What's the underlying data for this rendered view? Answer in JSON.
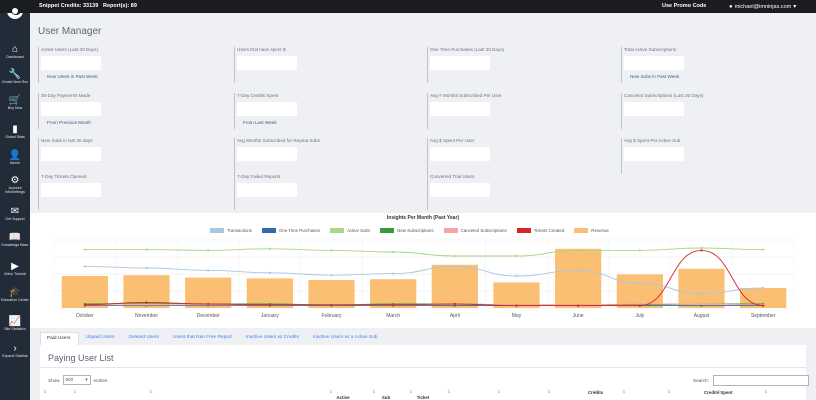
{
  "topbar": {
    "snippet_credits": "Snippet Credits: 33139",
    "reports": "Report(s): 89",
    "promo": "Use Promo Code",
    "user": "michael@imninjas.com"
  },
  "sidebar": {
    "items": [
      {
        "label": "Dashboard",
        "icon": "home-icon",
        "glyph": "⌂"
      },
      {
        "label": "Create New Run",
        "icon": "wrench-icon",
        "glyph": "🔧"
      },
      {
        "label": "Buy Now",
        "icon": "cart-icon",
        "glyph": "🛒"
      },
      {
        "label": "Global Stats",
        "icon": "bar-chart-icon",
        "glyph": "▮"
      },
      {
        "label": "Admin",
        "icon": "user-icon",
        "glyph": "👤"
      },
      {
        "label": "Account Info/Settings",
        "icon": "gear-icon",
        "glyph": "⚙"
      },
      {
        "label": "Get Support",
        "icon": "envelope-icon",
        "glyph": "✉"
      },
      {
        "label": "Knowledge Base",
        "icon": "book-icon",
        "glyph": "📖"
      },
      {
        "label": "Video Tutorial",
        "icon": "video-icon",
        "glyph": "▶"
      },
      {
        "label": "Education Center",
        "icon": "graduation-cap-icon",
        "glyph": "🎓"
      },
      {
        "label": "Site Statistics",
        "icon": "line-chart-icon",
        "glyph": "📈"
      },
      {
        "label": "Expand Sidebar",
        "icon": "chevron-right-icon",
        "glyph": "›"
      }
    ]
  },
  "page_title": "User Manager",
  "stats": [
    {
      "label": "Active Users (Last 30 Days)",
      "sub": "New Users in Past Week"
    },
    {
      "label": "Users that have spent $",
      "sub": ""
    },
    {
      "label": "One Time Purchases (Last 30 Days)",
      "sub": ""
    },
    {
      "label": "Total Active Subscriptions",
      "sub": "New Subs in Past Week"
    },
    {
      "label": "30-Day Payments Made",
      "sub": "From Previous Month"
    },
    {
      "label": "7-Day Credits Spent",
      "sub": "From Last Week"
    },
    {
      "label": "Avg # Months Subscribed Per User",
      "sub": ""
    },
    {
      "label": "Canceled Subscriptions (Last 30 Days)",
      "sub": ""
    },
    {
      "label": "New Subs in last 30 days",
      "sub": ""
    },
    {
      "label": "Avg Months Subscribed for Repeat Subs",
      "sub": ""
    },
    {
      "label": "Avg $ Spent Per User",
      "sub": ""
    },
    {
      "label": "Avg $ Spent Per Active Sub",
      "sub": ""
    },
    {
      "label": "7-Day Tickets Opened",
      "sub": ""
    },
    {
      "label": "7-Day Failed Reports",
      "sub": ""
    },
    {
      "label": "Converted Trial Users",
      "sub": ""
    }
  ],
  "chart_data": {
    "type": "bar",
    "title": "Insights Per Month (Past Year)",
    "categories": [
      "October",
      "November",
      "December",
      "January",
      "February",
      "March",
      "April",
      "May",
      "June",
      "July",
      "August",
      "September"
    ],
    "series": [
      {
        "name": "Transactions",
        "kind": "line",
        "color": "#a8c7e0",
        "values": [
          52,
          50,
          47,
          44,
          41,
          43,
          52,
          40,
          47,
          31,
          18,
          25
        ]
      },
      {
        "name": "One Time Purchases",
        "kind": "line",
        "color": "#2d6ea8",
        "values": [
          3,
          3,
          3,
          3,
          3,
          3,
          3,
          3,
          3,
          3,
          3,
          3
        ]
      },
      {
        "name": "Active Subs",
        "kind": "line",
        "color": "#a6d68a",
        "values": [
          73,
          73,
          72,
          74,
          72,
          70,
          65,
          65,
          72,
          72,
          75,
          73
        ]
      },
      {
        "name": "New Subscriptions",
        "kind": "line",
        "color": "#3a9a3a",
        "values": [
          5,
          6,
          5,
          5,
          4,
          5,
          5,
          4,
          4,
          4,
          5,
          5
        ]
      },
      {
        "name": "Canceled Subscriptions",
        "kind": "line",
        "color": "#f4a6a6",
        "values": [
          4,
          4,
          4,
          4,
          4,
          4,
          5,
          4,
          4,
          5,
          5,
          4
        ]
      },
      {
        "name": "Tickets Created",
        "kind": "line",
        "color": "#d62728",
        "values": [
          4,
          7,
          5,
          4,
          4,
          4,
          5,
          3,
          3,
          3,
          72,
          3
        ]
      },
      {
        "name": "Revenue",
        "kind": "bar",
        "color": "#fbbf74",
        "values": [
          40,
          41,
          38,
          37,
          35,
          36,
          54,
          32,
          74,
          42,
          49,
          25
        ]
      }
    ],
    "ylim": [
      0,
      85
    ],
    "legend": "top"
  },
  "tabs": [
    "Paid Users",
    "Unpaid Users",
    "Deleted Users",
    "Users that Ran Free Report",
    "Inactive Users w/ Credits",
    "Inactive Users w/ a Active Sub"
  ],
  "list": {
    "title": "Paying User List",
    "show_label": "Show",
    "entries_label": "entries",
    "page_size": "500",
    "search_label": "Search:",
    "columns": [
      "Edit",
      "Name",
      "Email",
      "Active Subs",
      "Sub Length",
      "Ticket Count",
      "$ Spent",
      "FD+T",
      "FST",
      "Vid",
      "FD+T",
      "FST",
      "Vid",
      "Last Active"
    ],
    "group_credits": "Credits",
    "group_credits_spent": "Credits Spent"
  }
}
